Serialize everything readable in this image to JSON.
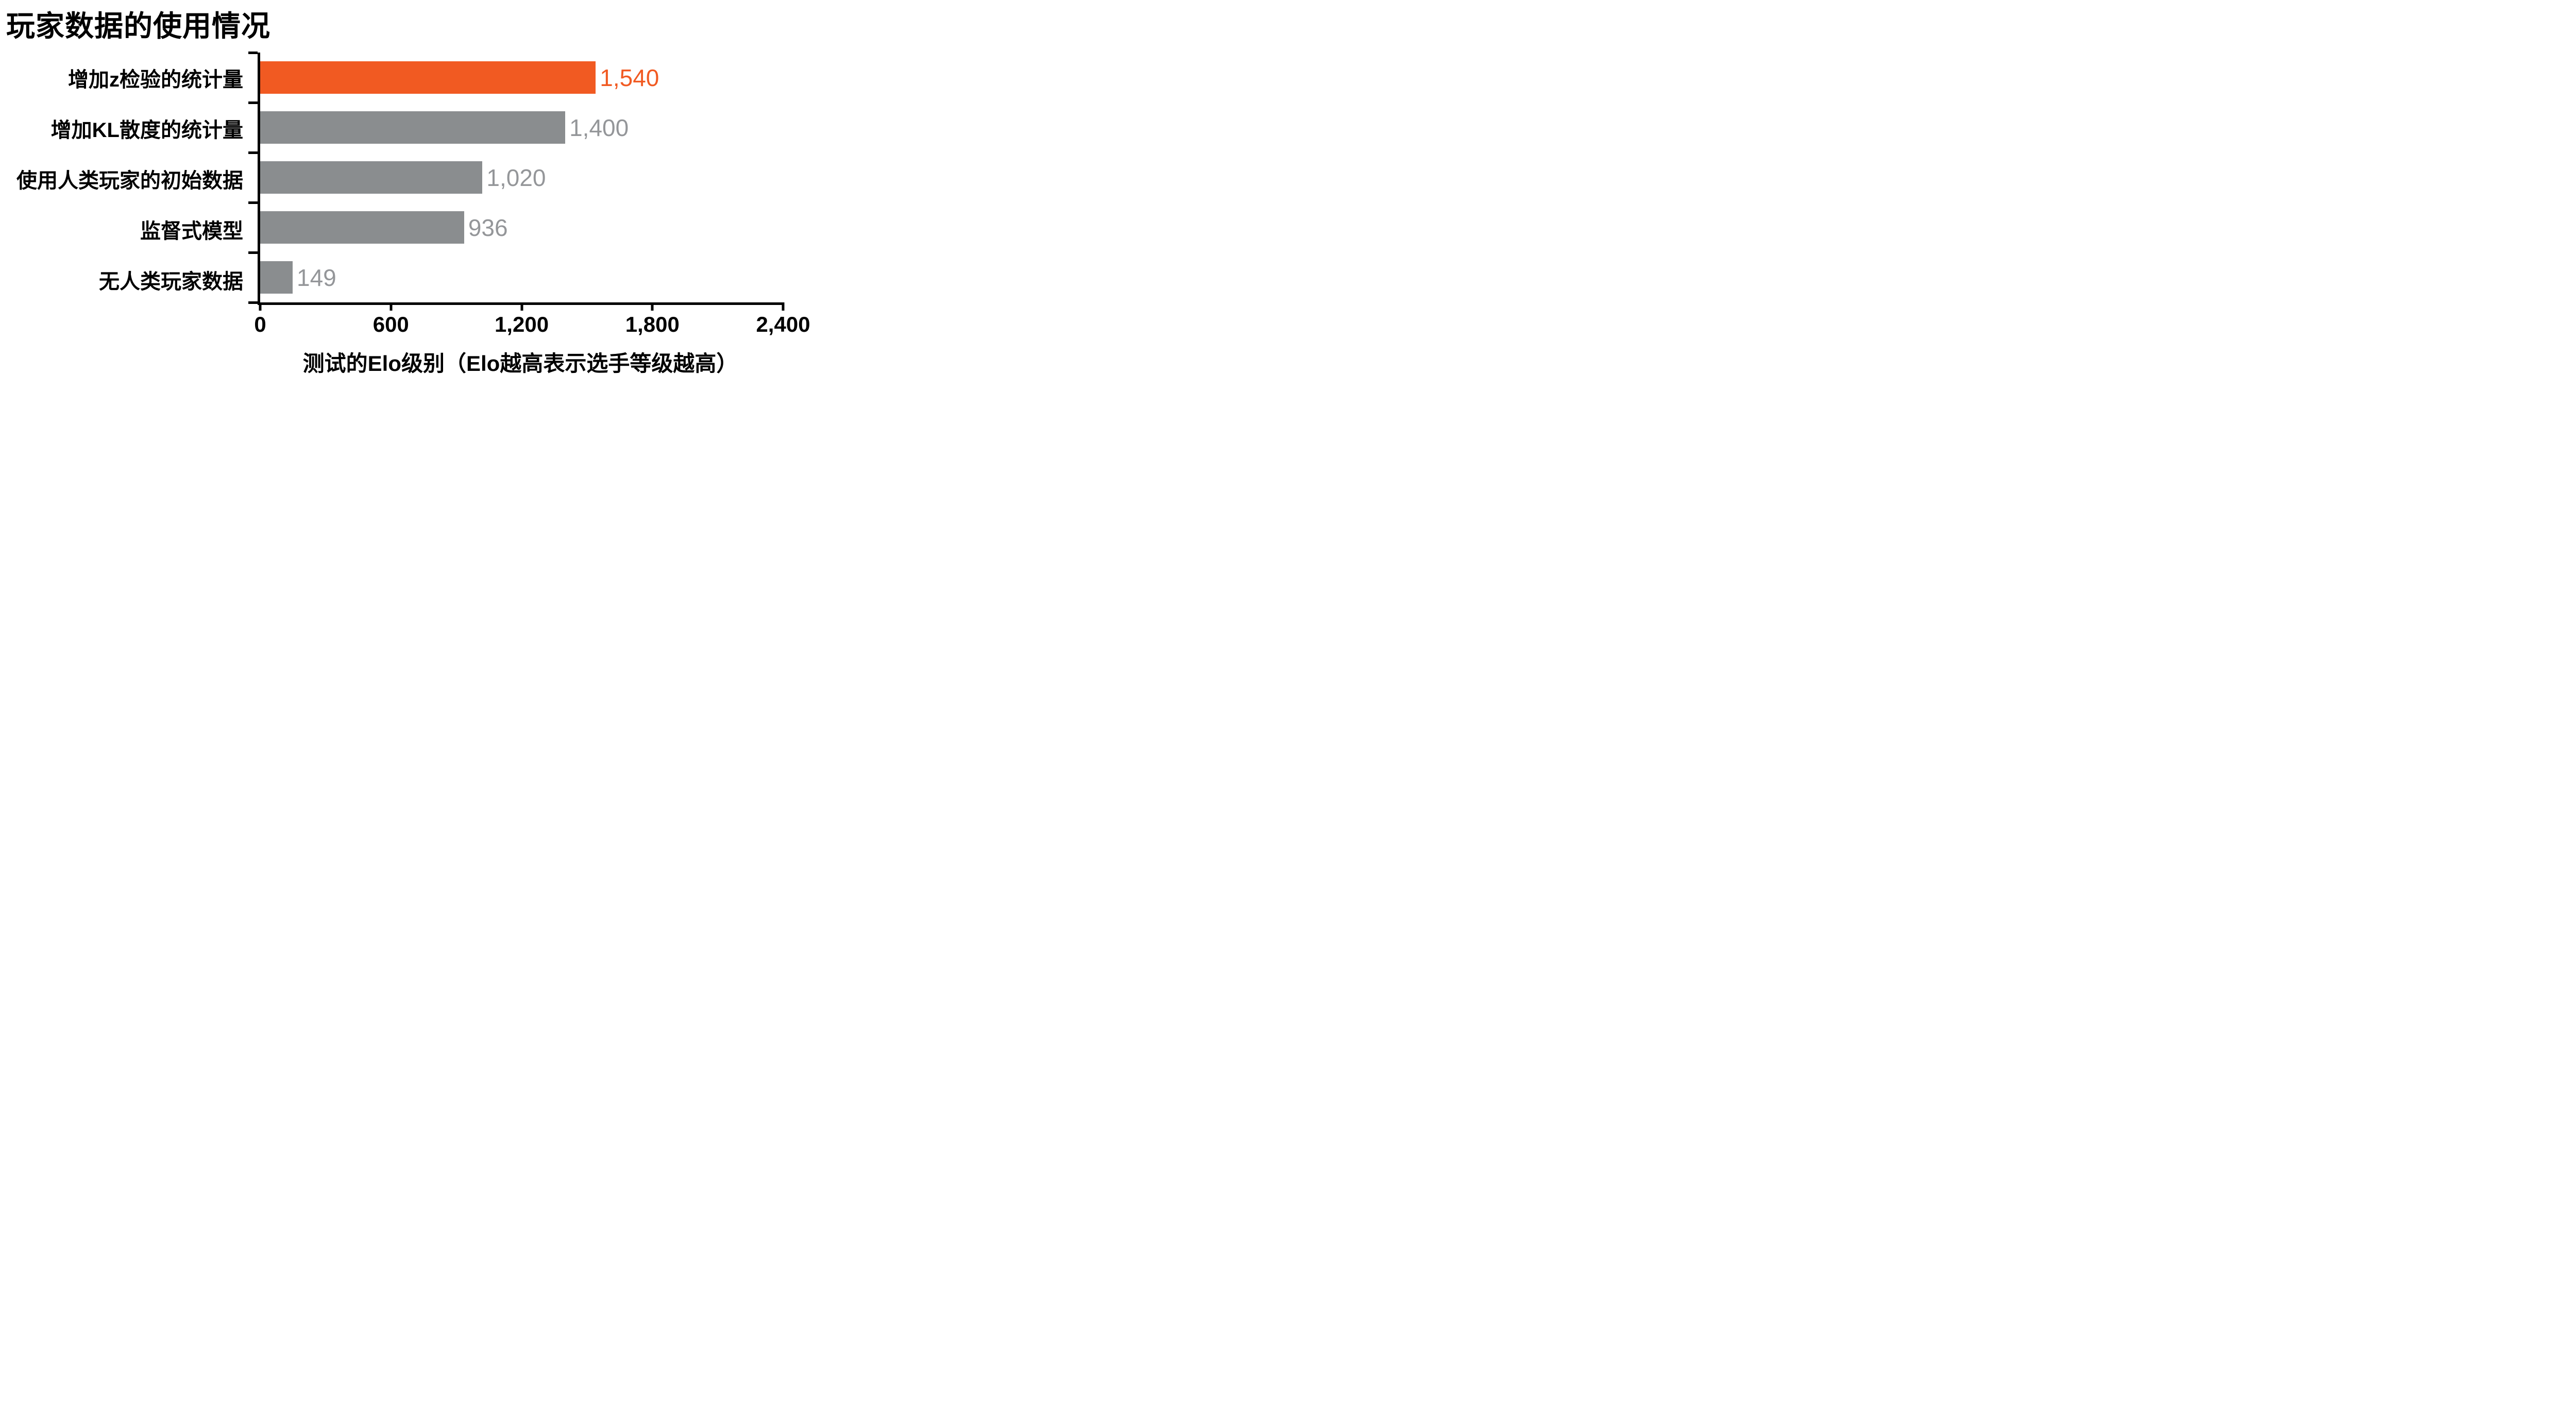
{
  "chart_data": {
    "type": "bar",
    "orientation": "horizontal",
    "title": "玩家数据的使用情况",
    "categories": [
      "增加z检验的统计量",
      "增加KL散度的统计量",
      "使用人类玩家的初始数据",
      "监督式模型",
      "无人类玩家数据"
    ],
    "values": [
      1540,
      1400,
      1020,
      936,
      149
    ],
    "value_labels": [
      "1,540",
      "1,400",
      "1,020",
      "936",
      "149"
    ],
    "xlabel": "测试的Elo级别（Elo越高表示选手等级越高）",
    "ylabel": "",
    "xlim": [
      0,
      2400
    ],
    "x_ticks": [
      0,
      600,
      1200,
      1800,
      2400
    ],
    "x_tick_labels": [
      "0",
      "600",
      "1,200",
      "1,800",
      "2,400"
    ],
    "grid": false,
    "legend": false,
    "highlight_index": 0,
    "colors": {
      "highlight_bar": "#F15A22",
      "bar": "#8A8D8F",
      "highlight_value": "#F15A22",
      "value": "#949699",
      "axis": "#000000",
      "title": "#000000"
    }
  }
}
